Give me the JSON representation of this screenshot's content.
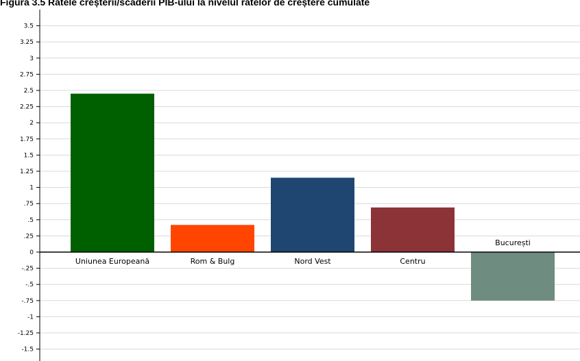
{
  "title": "Figura 3.5 Ratele creșterii/scăderii PIB-ului la nivelul ratelor de creștere cumulate",
  "chart_data": {
    "type": "bar",
    "title": "Figura 3.5 Ratele creșterii/scăderii PIB-ului la nivelul ratelor de creștere cumulate",
    "xlabel": "",
    "ylabel": "",
    "categories": [
      "Uniunea Europeană",
      "Rom & Bulg",
      "Nord Vest",
      "Centru",
      "București"
    ],
    "values": [
      2.45,
      0.42,
      1.15,
      0.69,
      -0.75
    ],
    "colors": [
      "#006000",
      "#ff4500",
      "#1e4670",
      "#8c3338",
      "#6e8c7f"
    ],
    "ylim": [
      -1.6,
      3.6
    ],
    "yticks": [
      3.5,
      3.25,
      3,
      2.75,
      2.5,
      2.25,
      2,
      1.75,
      1.5,
      1.25,
      1,
      0.75,
      0.5,
      0.25,
      0,
      -0.25,
      -0.5,
      -0.75,
      -1,
      -1.25,
      -1.5
    ],
    "ytick_labels": [
      "3.5",
      "3.25",
      "3",
      "2.75",
      "2.5",
      "2.25",
      "2",
      "1.75",
      "1.5",
      "1.25",
      "1",
      ".75",
      ".5",
      ".25",
      "0",
      "-.25",
      "-.5",
      "-.75",
      "-1",
      "-1.25",
      "-1.5"
    ],
    "grid": true,
    "legend": "none"
  }
}
